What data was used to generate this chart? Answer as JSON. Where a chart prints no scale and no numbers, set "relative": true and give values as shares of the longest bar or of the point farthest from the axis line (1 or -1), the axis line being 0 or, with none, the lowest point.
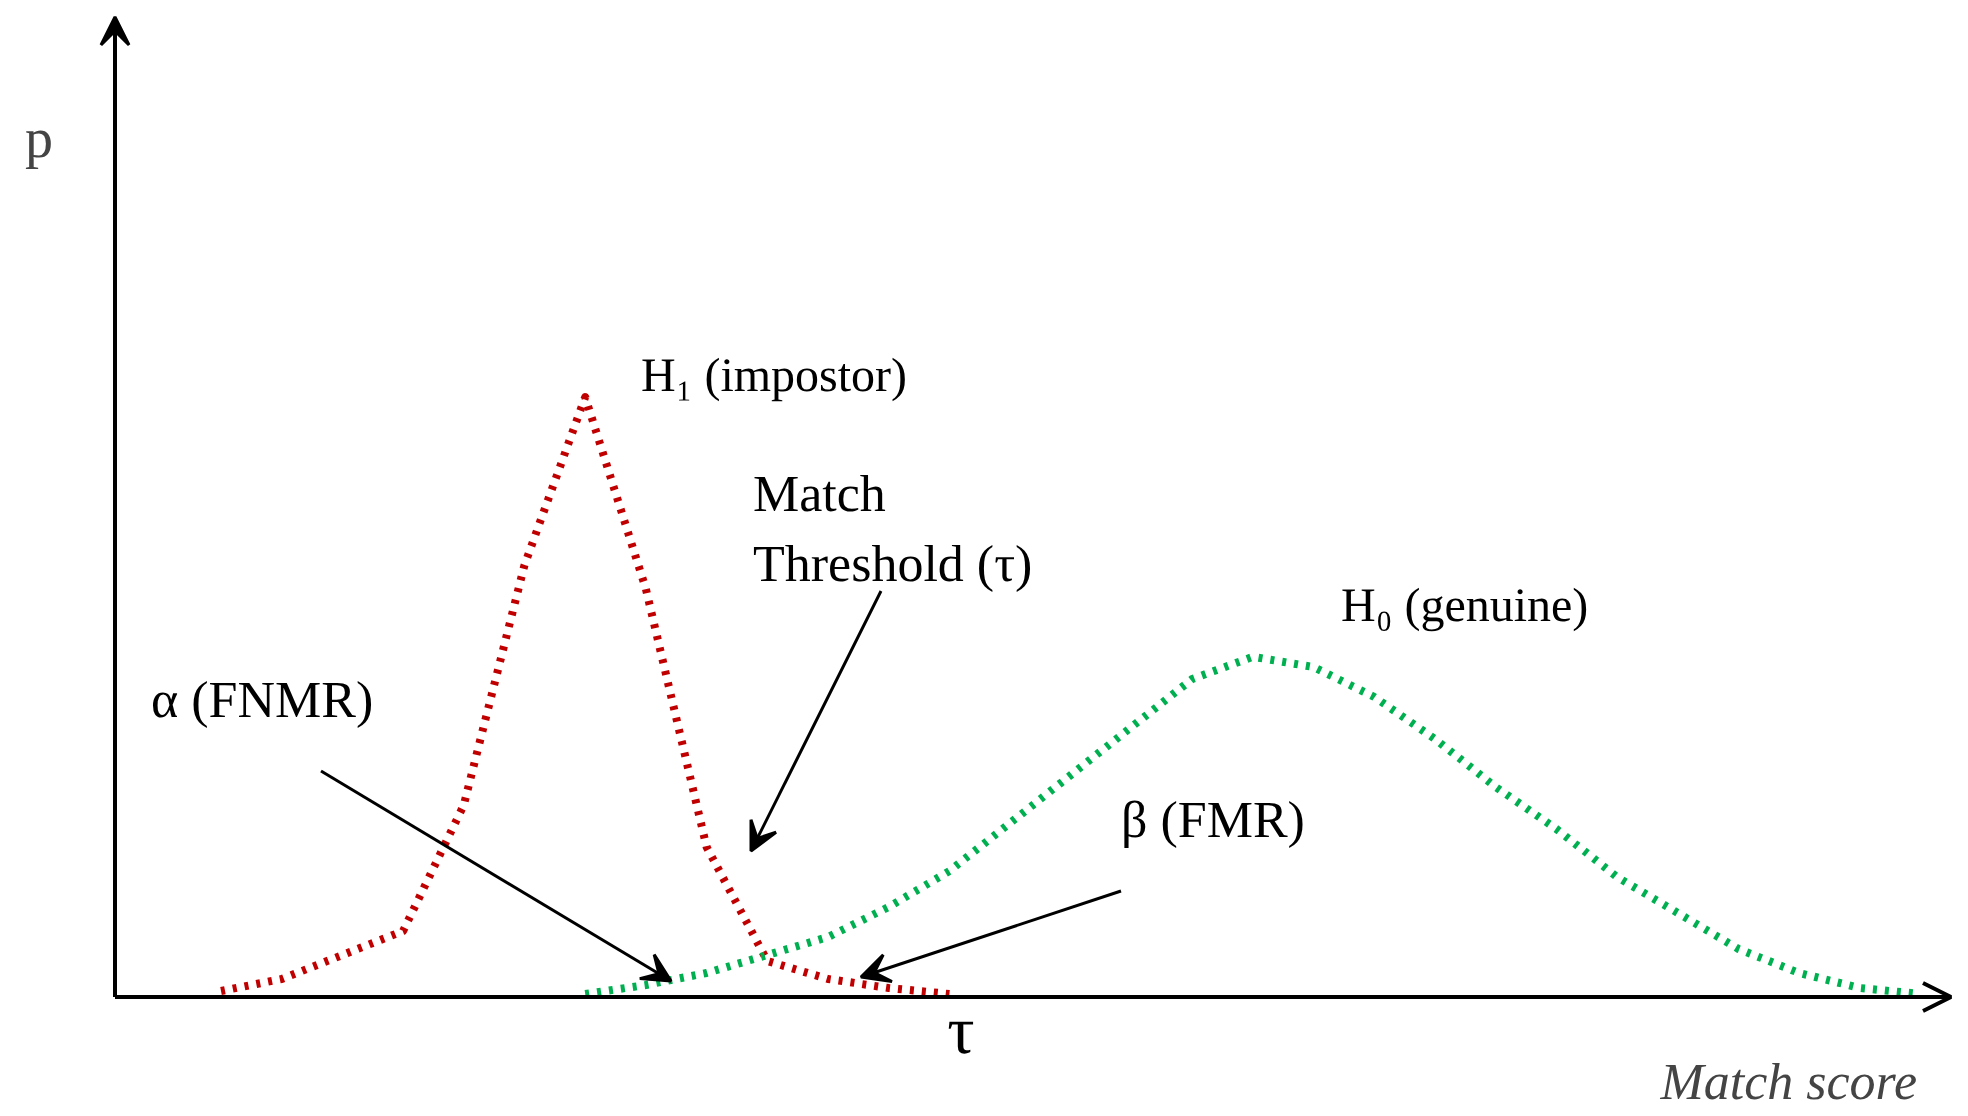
{
  "chart_data": {
    "type": "line",
    "relative": true,
    "ylabel": "p",
    "xlabel": "Match score",
    "line_style": "dotted",
    "marker": "none",
    "grid": false,
    "categories": [
      null,
      null,
      null,
      null,
      null,
      null,
      null,
      null,
      null,
      null,
      null,
      null,
      null,
      null,
      null,
      null,
      null,
      null,
      null,
      null,
      null,
      null,
      null,
      null,
      null,
      null,
      null,
      null,
      null
    ],
    "series": [
      {
        "name": "H₁ (impostor)",
        "color": "#c00000",
        "values": [
          0.01,
          0.03,
          0.07,
          0.11,
          0.32,
          0.72,
          1,
          0.68,
          0.25,
          0.06,
          0.03,
          0.015,
          0.005,
          null,
          null,
          null,
          null,
          null,
          null,
          null,
          null,
          null,
          null,
          null,
          null,
          null,
          null,
          null,
          null
        ]
      },
      {
        "name": "H₀ (genuine)",
        "color": "#00b050",
        "values": [
          null,
          null,
          null,
          null,
          null,
          null,
          0.005,
          0.02,
          0.04,
          0.07,
          0.1,
          0.15,
          0.21,
          0.29,
          0.37,
          0.45,
          0.53,
          0.567,
          0.55,
          0.5,
          0.43,
          0.35,
          0.28,
          0.2,
          0.14,
          0.08,
          0.04,
          0.015,
          0.005
        ]
      }
    ],
    "annotations": [
      "Match\nThreshold (τ)",
      "α (FNMR)",
      "β (FMR)",
      "τ"
    ]
  }
}
